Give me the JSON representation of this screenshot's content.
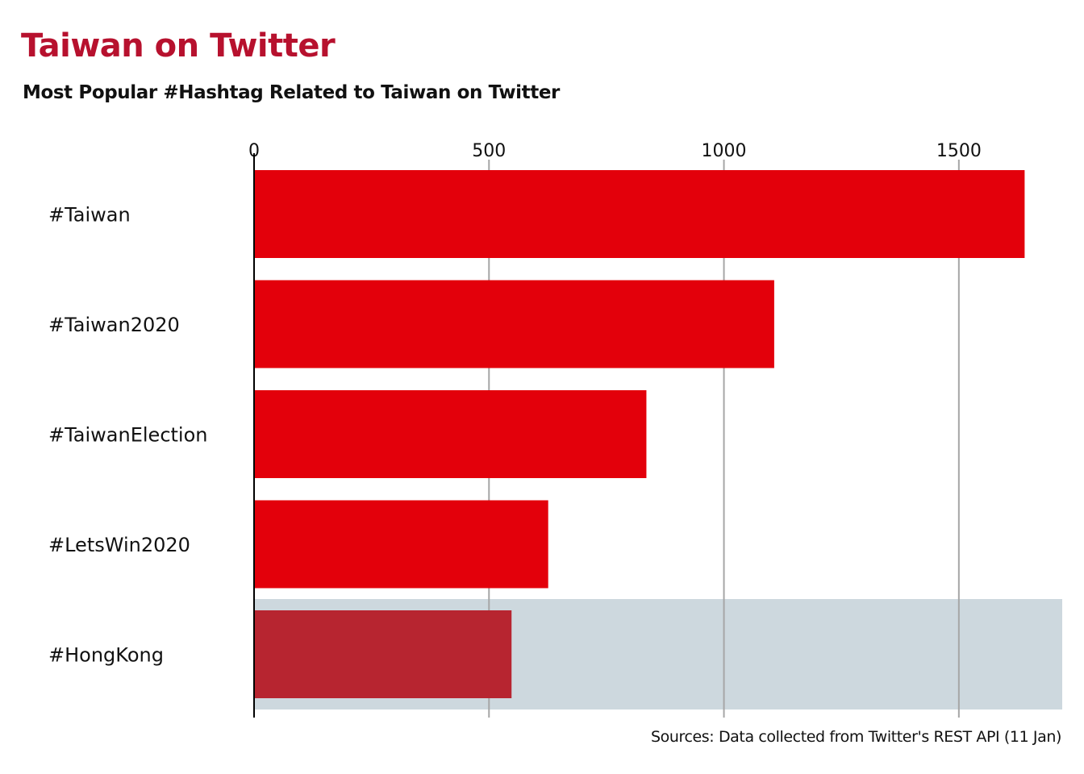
{
  "header": {
    "title": "Taiwan on Twitter",
    "subtitle": "Most Popular #Hashtag Related to Taiwan on Twitter"
  },
  "footer": {
    "source": "Sources: Data collected from Twitter's REST API (11 Jan)"
  },
  "colors": {
    "title": "#b7112e",
    "bar": "#e3000b",
    "highlight_bar": "#b72530",
    "highlight_band": "#cdd8de",
    "grid": "#a6a6a6",
    "axis": "#000000"
  },
  "chart_data": {
    "type": "bar",
    "orientation": "horizontal",
    "title": "Taiwan on Twitter",
    "subtitle": "Most Popular #Hashtag Related to Taiwan on Twitter",
    "categories": [
      "#Taiwan",
      "#Taiwan2020",
      "#TaiwanElection",
      "#LetsWin2020",
      "#HongKong"
    ],
    "values": [
      1640,
      1107,
      835,
      626,
      548
    ],
    "highlighted_category": "#HongKong",
    "xlim": [
      0,
      1720
    ],
    "xticks": [
      0,
      500,
      1000,
      1500
    ],
    "grid": true,
    "axis_position": "top"
  }
}
